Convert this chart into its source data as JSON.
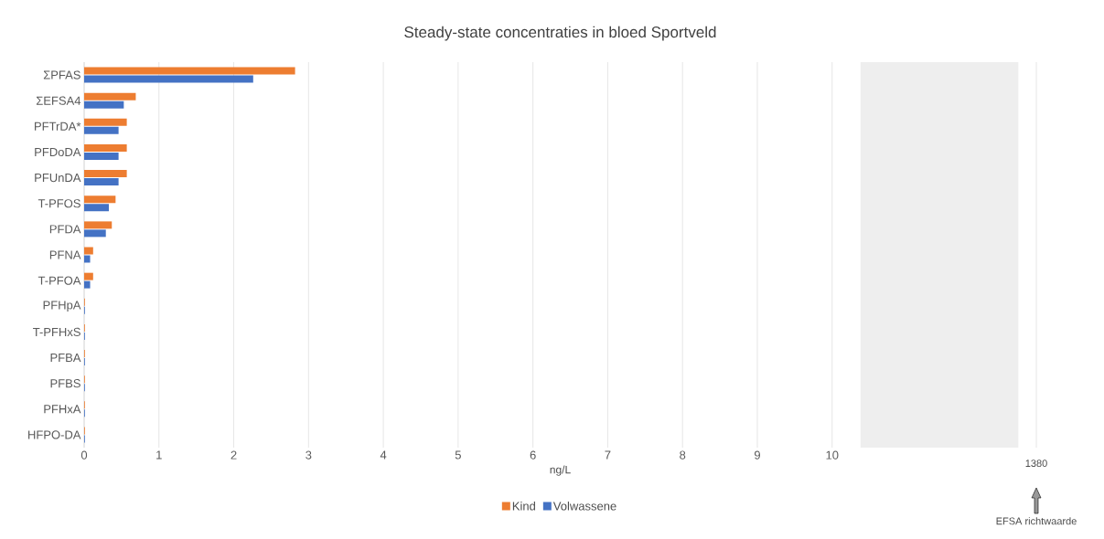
{
  "chart_data": {
    "type": "bar",
    "orientation": "horizontal",
    "title": "Steady-state concentraties in bloed Sportveld",
    "xlabel": "ng/L",
    "categories": [
      "ΣPFAS",
      "ΣEFSA4",
      "PFTrDA*",
      "PFDoDA",
      "PFUnDA",
      "T-PFOS",
      "PFDA",
      "PFNA",
      "T-PFOA",
      "PFHpA",
      "T-PFHxS",
      "PFBA",
      "PFBS",
      "PFHxA",
      "HFPO-DA"
    ],
    "series": [
      {
        "name": "Kind",
        "color": "#ed7d31",
        "values": [
          2.82,
          0.69,
          0.57,
          0.57,
          0.57,
          0.42,
          0.37,
          0.12,
          0.12,
          0.01,
          0.01,
          0.01,
          0.01,
          0.01,
          0.01
        ]
      },
      {
        "name": "Volwassene",
        "color": "#4472c4",
        "values": [
          2.26,
          0.53,
          0.46,
          0.46,
          0.46,
          0.33,
          0.29,
          0.08,
          0.08,
          0.01,
          0.01,
          0.01,
          0.01,
          0.01,
          0.01
        ]
      }
    ],
    "xlim": [
      0,
      12.73
    ],
    "xticks": [
      0,
      1,
      2,
      3,
      4,
      5,
      6,
      7,
      8,
      9,
      10,
      {
        "value": 12.73,
        "label": null
      }
    ],
    "bands": [
      {
        "axis": "x",
        "from": 10.38,
        "to": 12.49,
        "color": "#eeeeee"
      }
    ],
    "annotations": [
      "1380",
      "EFSA richtwaarde"
    ],
    "grid": "x",
    "legend": "bottom"
  }
}
